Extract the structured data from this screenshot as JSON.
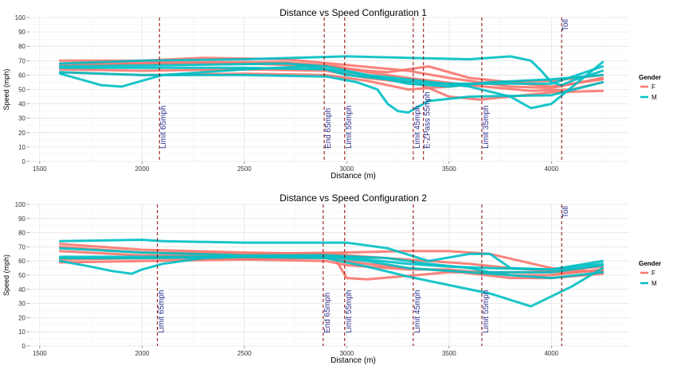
{
  "chart_data": [
    {
      "type": "line",
      "title": "Distance vs Speed Configuration 1",
      "xlabel": "Distance (m)",
      "ylabel": "Speed (mph)",
      "xlim": [
        1450,
        4380
      ],
      "ylim": [
        0,
        100
      ],
      "x_ticks": [
        1500,
        2000,
        2500,
        3000,
        3500,
        4000
      ],
      "y_ticks": [
        0,
        10,
        20,
        30,
        40,
        50,
        60,
        70,
        80,
        90,
        100
      ],
      "grid": true,
      "legend": {
        "title": "Gender",
        "position": "right",
        "entries": [
          {
            "label": "F",
            "color": "#F8766D"
          },
          {
            "label": "M",
            "color": "#00BFC4"
          }
        ]
      },
      "markers": [
        {
          "x": 2085,
          "label": "Limit 65mph"
        },
        {
          "x": 2890,
          "label": "End 65mph"
        },
        {
          "x": 2990,
          "label": "Limit 55mph"
        },
        {
          "x": 3325,
          "label": "Limit 45mph"
        },
        {
          "x": 3375,
          "label": "E-ZPass 55mph"
        },
        {
          "x": 3660,
          "label": "Limit 35mph"
        },
        {
          "x": 4050,
          "label": "Toll"
        }
      ],
      "series": [
        {
          "group": "F",
          "x": [
            1600,
            2000,
            2300,
            2700,
            3000,
            3300,
            3500,
            3800,
            4000,
            4250
          ],
          "y": [
            70,
            70,
            72,
            71,
            67,
            63,
            58,
            52,
            51,
            58
          ]
        },
        {
          "group": "F",
          "x": [
            1600,
            2000,
            2500,
            2900,
            3100,
            3200,
            3300,
            3400,
            3600,
            4000,
            4250
          ],
          "y": [
            67,
            68,
            68,
            66,
            63,
            62,
            64,
            66,
            58,
            52,
            57
          ]
        },
        {
          "group": "F",
          "x": [
            1600,
            2000,
            2500,
            2900,
            3100,
            3350,
            3500,
            3650,
            3800,
            4000,
            4250
          ],
          "y": [
            64,
            63,
            64,
            63,
            58,
            54,
            45,
            43,
            45,
            48,
            49
          ]
        },
        {
          "group": "F",
          "x": [
            1600,
            2000,
            2500,
            2900,
            3100,
            3300,
            3500,
            3700,
            4000,
            4250
          ],
          "y": [
            62,
            60,
            61,
            60,
            56,
            50,
            52,
            55,
            56,
            60
          ]
        },
        {
          "group": "F",
          "x": [
            1600,
            2200,
            2700,
            2950,
            3100,
            3300,
            3600,
            3900,
            4100,
            4250
          ],
          "y": [
            68,
            69,
            69,
            66,
            62,
            58,
            53,
            49,
            50,
            55
          ]
        },
        {
          "group": "M",
          "x": [
            1600,
            2000,
            2500,
            2900,
            3050,
            3150,
            3200,
            3250,
            3300,
            3400,
            3600,
            4000,
            4250
          ],
          "y": [
            62,
            60,
            60,
            59,
            55,
            50,
            40,
            35,
            34,
            42,
            45,
            46,
            55
          ]
        },
        {
          "group": "M",
          "x": [
            1600,
            2000,
            2500,
            3000,
            3300,
            3600,
            3800,
            3900,
            3950,
            4000,
            4050,
            4100,
            4250
          ],
          "y": [
            68,
            70,
            71,
            73,
            72,
            71,
            73,
            70,
            63,
            55,
            53,
            56,
            63
          ]
        },
        {
          "group": "M",
          "x": [
            1600,
            1750,
            1800,
            1900,
            2000,
            2100,
            2500,
            2800,
            3100,
            3300,
            3600,
            3800,
            3900,
            4000,
            4250
          ],
          "y": [
            61,
            55,
            53,
            52,
            56,
            60,
            64,
            66,
            60,
            57,
            52,
            45,
            37,
            40,
            69
          ]
        },
        {
          "group": "M",
          "x": [
            1600,
            2200,
            2700,
            2900,
            3100,
            3300,
            3500,
            3700,
            4000,
            4250
          ],
          "y": [
            66,
            67,
            68,
            66,
            60,
            54,
            52,
            55,
            57,
            60
          ]
        },
        {
          "group": "M",
          "x": [
            1600,
            2000,
            2500,
            2900,
            3000,
            3200,
            3400,
            3600,
            4000,
            4250
          ],
          "y": [
            65,
            65,
            65,
            64,
            60,
            57,
            54,
            54,
            54,
            66
          ]
        }
      ]
    },
    {
      "type": "line",
      "title": "Distance vs Speed Configuration 2",
      "xlabel": "Distance (m)",
      "ylabel": "Speed (mph)",
      "xlim": [
        1450,
        4380
      ],
      "ylim": [
        0,
        100
      ],
      "x_ticks": [
        1500,
        2000,
        2500,
        3000,
        3500,
        4000
      ],
      "y_ticks": [
        0,
        10,
        20,
        30,
        40,
        50,
        60,
        70,
        80,
        90,
        100
      ],
      "grid": true,
      "legend": {
        "title": "Gender",
        "position": "right",
        "entries": [
          {
            "label": "F",
            "color": "#F8766D"
          },
          {
            "label": "M",
            "color": "#00BFC4"
          }
        ]
      },
      "markers": [
        {
          "x": 2075,
          "label": "Limit 65mph"
        },
        {
          "x": 2885,
          "label": "End 65mph"
        },
        {
          "x": 2990,
          "label": "Limit 55mph"
        },
        {
          "x": 3325,
          "label": "Limit 45mph"
        },
        {
          "x": 3660,
          "label": "Limit 55mph"
        },
        {
          "x": 4050,
          "label": "Toll"
        }
      ],
      "series": [
        {
          "group": "F",
          "x": [
            1600,
            2000,
            2500,
            2900,
            2950,
            3000,
            3100,
            3500,
            3700,
            4000,
            4250
          ],
          "y": [
            72,
            68,
            66,
            65,
            60,
            48,
            47,
            52,
            52,
            52,
            53
          ]
        },
        {
          "group": "F",
          "x": [
            1600,
            2000,
            2500,
            3000,
            3300,
            3500,
            3700,
            4000,
            4250
          ],
          "y": [
            70,
            66,
            65,
            66,
            67,
            67,
            65,
            55,
            52
          ]
        },
        {
          "group": "F",
          "x": [
            1600,
            2000,
            2500,
            2900,
            3100,
            3300,
            3500,
            3800,
            4000,
            4250
          ],
          "y": [
            61,
            62,
            62,
            62,
            58,
            55,
            53,
            48,
            48,
            51
          ]
        },
        {
          "group": "F",
          "x": [
            1600,
            2000,
            2500,
            2900,
            3000,
            3300,
            3500,
            3800,
            4000,
            4250
          ],
          "y": [
            59,
            60,
            61,
            60,
            57,
            54,
            54,
            50,
            50,
            54
          ]
        },
        {
          "group": "F",
          "x": [
            1600,
            2000,
            2500,
            2900,
            3200,
            3400,
            3600,
            3800,
            4000,
            4250
          ],
          "y": [
            67,
            64,
            64,
            65,
            62,
            60,
            58,
            55,
            53,
            56
          ]
        },
        {
          "group": "M",
          "x": [
            1600,
            2000,
            2100,
            2500,
            2900,
            3000,
            3200,
            3400,
            3600,
            3700,
            3750,
            3800,
            4000,
            4250
          ],
          "y": [
            74,
            75,
            74,
            73,
            73,
            73,
            69,
            60,
            65,
            65,
            60,
            55,
            54,
            60
          ]
        },
        {
          "group": "M",
          "x": [
            1600,
            1750,
            1850,
            1950,
            2000,
            2100,
            2300,
            2500,
            2900,
            3100,
            3300,
            3500,
            3700,
            3900,
            4000,
            4100,
            4250
          ],
          "y": [
            60,
            56,
            53,
            51,
            54,
            58,
            62,
            63,
            62,
            56,
            49,
            43,
            37,
            28,
            35,
            42,
            55
          ]
        },
        {
          "group": "M",
          "x": [
            1600,
            2000,
            2500,
            2900,
            3100,
            3300,
            3500,
            3700,
            4000,
            4250
          ],
          "y": [
            69,
            66,
            64,
            64,
            61,
            58,
            56,
            55,
            54,
            58
          ]
        },
        {
          "group": "M",
          "x": [
            1600,
            2000,
            2500,
            2900,
            3200,
            3400,
            3600,
            3700,
            4000,
            4250
          ],
          "y": [
            63,
            63,
            63,
            64,
            62,
            58,
            55,
            52,
            52,
            57
          ]
        },
        {
          "group": "M",
          "x": [
            1600,
            2000,
            2500,
            2900,
            3100,
            3300,
            3600,
            3800,
            4000,
            4250
          ],
          "y": [
            62,
            62,
            63,
            63,
            60,
            55,
            52,
            50,
            48,
            52
          ]
        }
      ]
    }
  ]
}
